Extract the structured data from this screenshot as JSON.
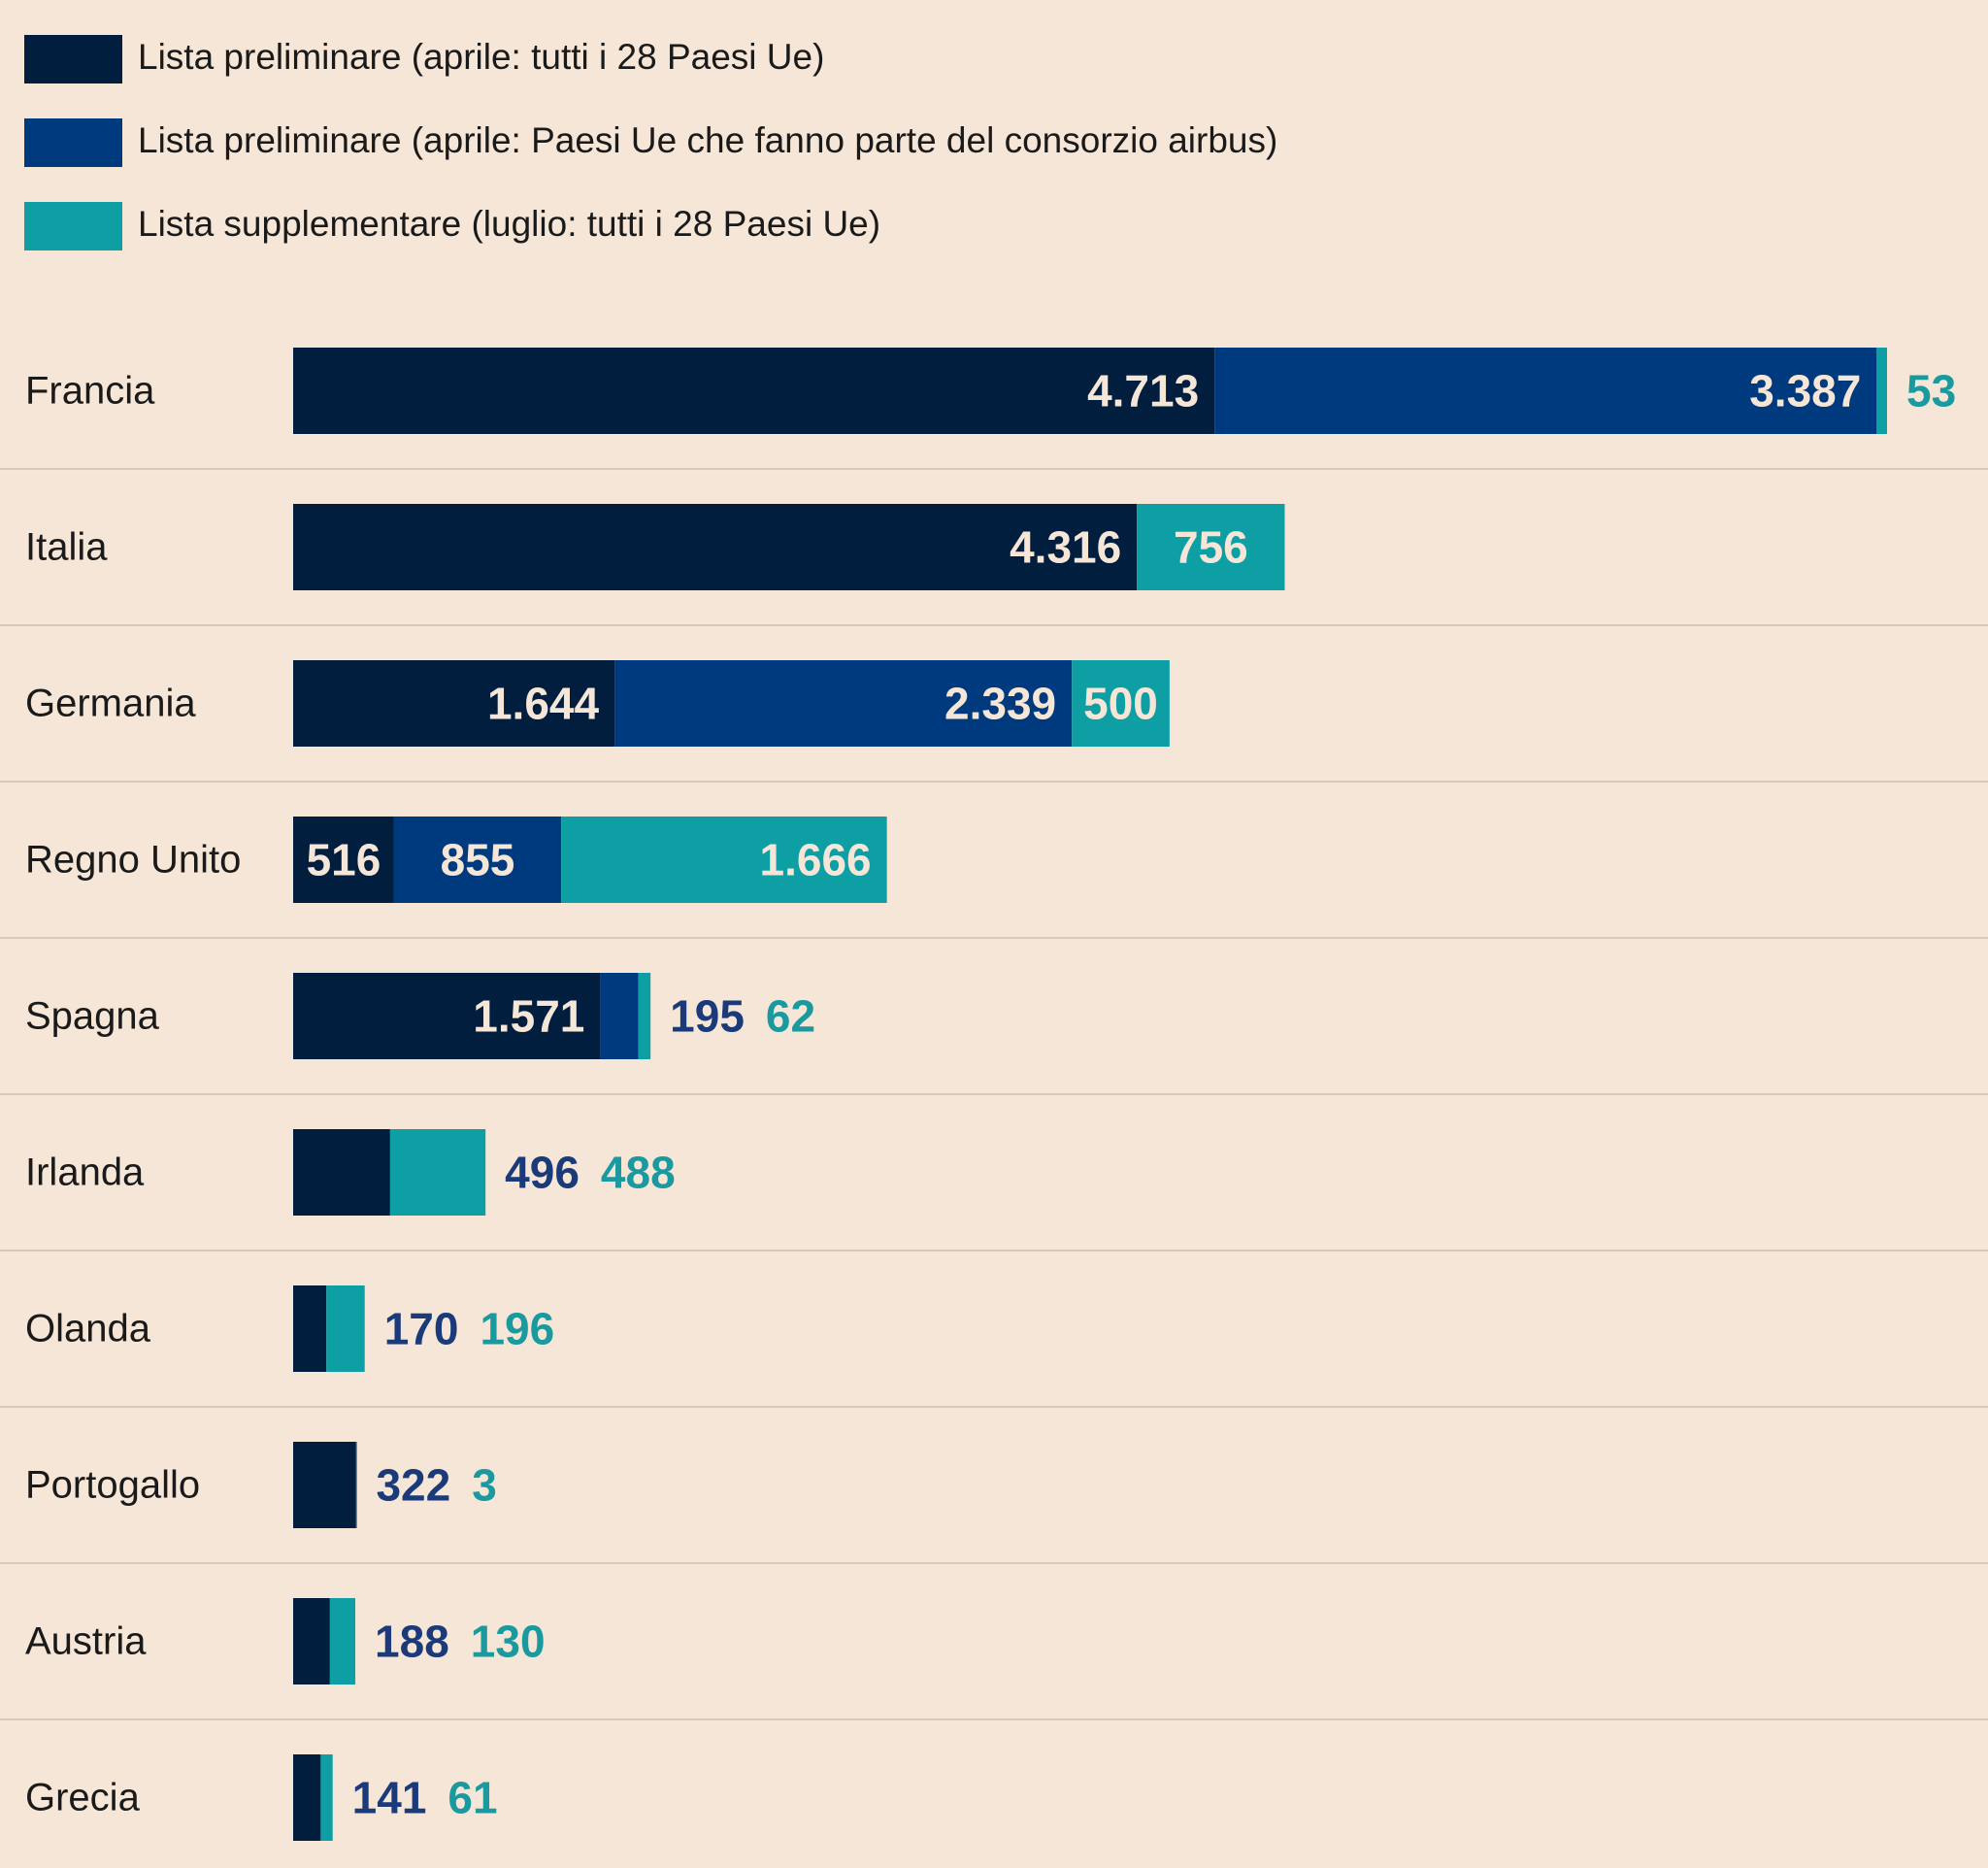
{
  "chart_data": {
    "type": "bar",
    "orientation": "horizontal",
    "stacked": true,
    "legend": {
      "placement": "top-left",
      "items": [
        {
          "key": "s1",
          "label": "Lista preliminare (aprile: tutti i 28  Paesi Ue)",
          "color": "#011e3e"
        },
        {
          "key": "s2",
          "label": "Lista preliminare (aprile: Paesi Ue che fanno parte del  consorzio airbus)",
          "color": "#003a7e"
        },
        {
          "key": "s3",
          "label": "Lista supplementare (luglio: tutti i 28 Paesi Ue)",
          "color": "#0e9fa5"
        }
      ]
    },
    "categories": [
      "Francia",
      "Italia",
      "Germania",
      "Regno Unito",
      "Spagna",
      "Irlanda",
      "Olanda",
      "Portogallo",
      "Austria",
      "Grecia"
    ],
    "series": [
      {
        "key": "s1",
        "name": "Lista preliminare (aprile: tutti i 28  Paesi Ue)",
        "values": [
          4713,
          4316,
          1644,
          516,
          1571,
          496,
          170,
          322,
          188,
          141
        ]
      },
      {
        "key": "s2",
        "name": "Lista preliminare (aprile: Paesi Ue che fanno parte del  consorzio airbus)",
        "values": [
          3387,
          0,
          2339,
          855,
          195,
          0,
          0,
          0,
          0,
          0
        ]
      },
      {
        "key": "s3",
        "name": "Lista supplementare (luglio: tutti i 28 Paesi Ue)",
        "values": [
          53,
          756,
          500,
          1666,
          62,
          488,
          196,
          3,
          130,
          61
        ]
      }
    ],
    "labels": [
      [
        {
          "text": "4.713",
          "series": "s1",
          "place": "inside"
        },
        {
          "text": "3.387",
          "series": "s2",
          "place": "inside"
        },
        {
          "text": "53",
          "series": "s3",
          "place": "outside"
        }
      ],
      [
        {
          "text": "4.316",
          "series": "s1",
          "place": "inside"
        },
        {
          "text": "756",
          "series": "s3",
          "place": "inside"
        }
      ],
      [
        {
          "text": "1.644",
          "series": "s1",
          "place": "inside"
        },
        {
          "text": "2.339",
          "series": "s2",
          "place": "inside"
        },
        {
          "text": "500",
          "series": "s3",
          "place": "inside"
        }
      ],
      [
        {
          "text": "516",
          "series": "s1",
          "place": "inside"
        },
        {
          "text": "855",
          "series": "s2",
          "place": "inside"
        },
        {
          "text": "1.666",
          "series": "s3",
          "place": "inside"
        }
      ],
      [
        {
          "text": "1.571",
          "series": "s1",
          "place": "inside"
        },
        {
          "text": "195",
          "series": "s2",
          "place": "outside"
        },
        {
          "text": "62",
          "series": "s3",
          "place": "outside"
        }
      ],
      [
        {
          "text": "496",
          "series": "s2",
          "place": "outside"
        },
        {
          "text": "488",
          "series": "s3",
          "place": "outside"
        }
      ],
      [
        {
          "text": "170",
          "series": "s2",
          "place": "outside"
        },
        {
          "text": "196",
          "series": "s3",
          "place": "outside"
        }
      ],
      [
        {
          "text": "322",
          "series": "s2",
          "place": "outside"
        },
        {
          "text": "3",
          "series": "s3",
          "place": "outside"
        }
      ],
      [
        {
          "text": "188",
          "series": "s2",
          "place": "outside"
        },
        {
          "text": "130",
          "series": "s3",
          "place": "outside"
        }
      ],
      [
        {
          "text": "141",
          "series": "s2",
          "place": "outside"
        },
        {
          "text": "61",
          "series": "s3",
          "place": "outside"
        }
      ]
    ],
    "label_colors": {
      "inside": "#f5e6d7",
      "outside_s2": "#1a3a7a",
      "outside_s3": "#1a9a9e"
    },
    "xlim": [
      0,
      8500
    ],
    "grid": false,
    "title": "",
    "xlabel": "",
    "ylabel": ""
  }
}
